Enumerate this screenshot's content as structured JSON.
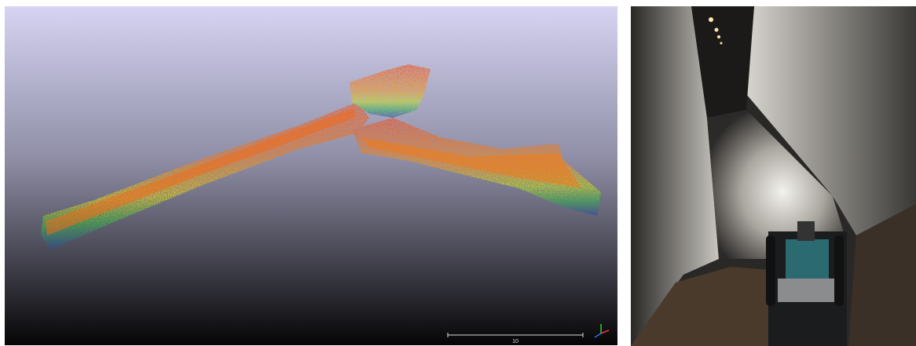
{
  "scale_bar": {
    "label": "10"
  }
}
